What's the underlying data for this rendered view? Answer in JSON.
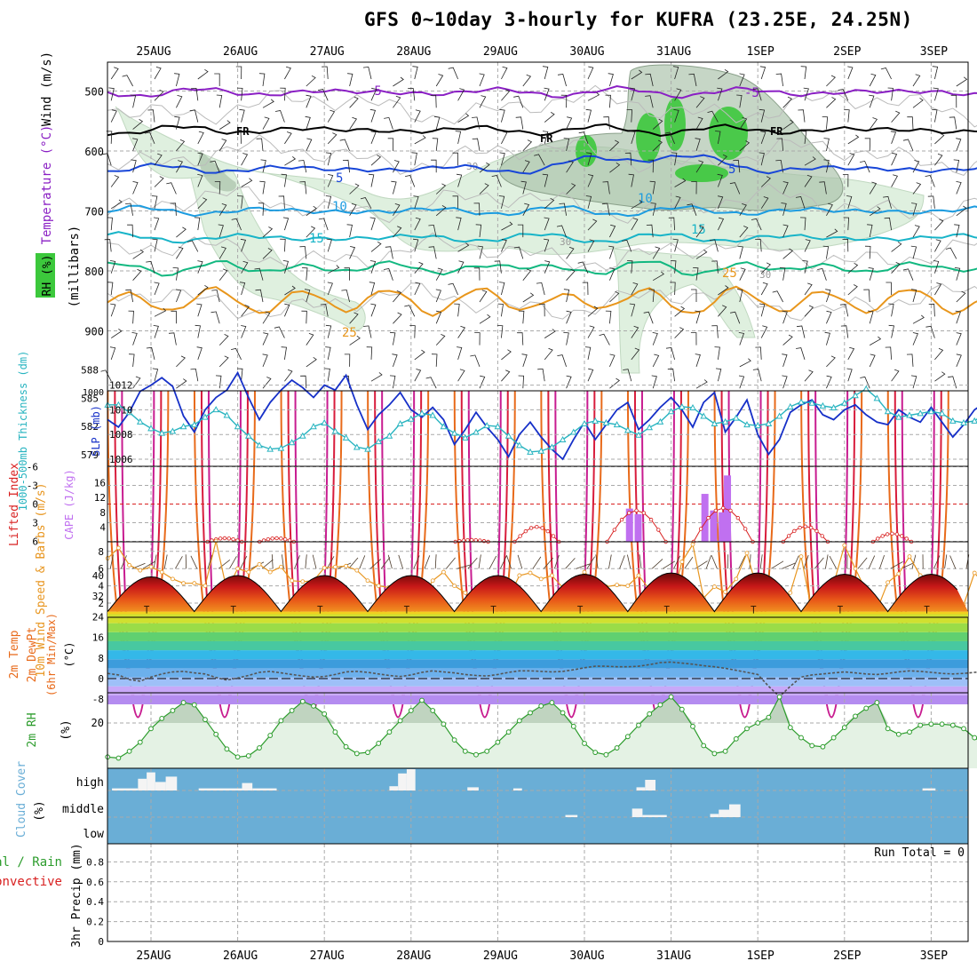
{
  "title": "GFS 0~10day 3-hourly for KUFRA (23.25E, 24.25N)",
  "dates": [
    "25AUG",
    "26AUG",
    "27AUG",
    "28AUG",
    "29AUG",
    "30AUG",
    "31AUG",
    "1SEP",
    "2SEP",
    "3SEP"
  ],
  "colors": {
    "purple": "#8a1fc4",
    "black": "#000000",
    "blue": "#1846d8",
    "sky": "#1c9ce0",
    "teal": "#18b4c8",
    "green": "#12b880",
    "orange": "#e8961c",
    "dorange": "#e86a1a",
    "red": "#d81c3c",
    "magenta": "#c81c90",
    "rhfill": "#dff0df",
    "rhdark": "#a8c0a8",
    "rhgreen": "#3cc83c",
    "cloud": "#6aaed6",
    "slp": "#1630c8",
    "thick": "#28b4c0",
    "cape": "#c070f0",
    "li": "#d82020",
    "wind10": "#e89620",
    "rh2m": "#2c9c2c"
  },
  "chart_data": [
    {
      "panel": "upper-air",
      "type": "line",
      "ylabel": "(millibars)",
      "legend": {
        "wind": "Wind (m/s)",
        "temp": "Temperature (°C)",
        "rh": "RH (%)"
      },
      "yticks": [
        500,
        600,
        700,
        800,
        900
      ],
      "ylim": [
        1000,
        450
      ],
      "contour_labels": {
        "m5": "-5",
        "fr": "FR",
        "p5": "5",
        "p10": "10",
        "p15": "15",
        "p25": "25",
        "rh30": "30"
      },
      "isotherms": [
        {
          "name": "-5",
          "color": "purple",
          "mb": 502
        },
        {
          "name": "FR",
          "color": "black",
          "mb": 565
        },
        {
          "name": "5",
          "color": "blue",
          "mb": 630
        },
        {
          "name": "10",
          "color": "sky",
          "mb": 700
        },
        {
          "name": "15",
          "color": "teal",
          "mb": 745
        },
        {
          "name": "20",
          "color": "green",
          "mb": 795
        },
        {
          "name": "25",
          "color": "orange",
          "mb": 850
        }
      ]
    },
    {
      "panel": "slp-thickness",
      "type": "line",
      "ylabel_left": "1000-500mb Thickness (dm)",
      "ylabel_right": "SLP (mb)",
      "left_ticks": [
        579,
        582,
        585,
        588
      ],
      "right_ticks": [
        1006,
        1008,
        1010,
        1012
      ],
      "slp_mb": [
        1009.2,
        1008.6,
        1009.8,
        1011.5,
        1012.0,
        1012.6,
        1011.9,
        1009.5,
        1008.2,
        1010.0,
        1011.0,
        1011.6,
        1013.0,
        1011.0,
        1009.2,
        1010.6,
        1011.6,
        1012.4,
        1011.8,
        1011.0,
        1012.0,
        1011.6,
        1012.8,
        1010.4,
        1008.4,
        1009.6,
        1010.4,
        1011.4,
        1010.0,
        1009.4,
        1010.2,
        1009.2,
        1007.2,
        1008.4,
        1009.8,
        1008.6,
        1007.6,
        1006.2,
        1008.0,
        1009.0,
        1007.8,
        1006.8,
        1006.0,
        1007.6,
        1009.0,
        1007.6,
        1008.8,
        1010.0,
        1010.6,
        1008.4,
        1009.2,
        1010.2,
        1011.0,
        1010.0,
        1008.6,
        1010.6,
        1011.4,
        1008.2,
        1009.4,
        1010.8,
        1008.0,
        1006.4,
        1007.6,
        1009.8,
        1010.4,
        1010.8,
        1009.6,
        1009.2,
        1010.0,
        1010.4,
        1009.6,
        1009.0,
        1008.8,
        1010.0,
        1009.4,
        1009.0,
        1010.2,
        1009.0,
        1007.8,
        1008.8,
        1010.0,
        1010.6,
        1009.0,
        1008.0,
        1009.4,
        1010.6,
        1011.4
      ],
      "thick_dm": [
        584.3,
        584.3,
        583.5,
        582.5,
        581.8,
        581.3,
        581.5,
        582.0,
        582.2,
        583.0,
        583.8,
        583.2,
        582.0,
        581.0,
        580.0,
        579.6,
        579.7,
        580.3,
        581.0,
        582.0,
        582.4,
        581.5,
        580.8,
        579.8,
        579.6,
        580.4,
        581.0,
        582.3,
        582.8,
        583.4,
        583.2,
        582.0,
        581.3,
        580.8,
        581.4,
        582.1,
        582.0,
        581.0,
        580.0,
        579.3,
        579.4,
        579.8,
        580.6,
        581.4,
        582.3,
        582.6,
        582.4,
        582.2,
        581.6,
        581.1,
        581.9,
        582.5,
        583.6,
        584.1,
        584.0,
        583.1,
        582.3,
        582.5,
        582.9,
        582.2,
        582.1,
        582.3,
        583.1,
        584.1,
        584.6,
        584.5,
        584.2,
        584.0,
        584.5,
        585.3,
        586.0,
        585.0,
        583.6,
        583.0,
        583.2,
        583.4,
        583.6,
        583.4,
        582.6,
        582.4,
        582.6,
        583.4,
        582.8,
        582.0,
        581.6,
        581.0,
        581.8
      ]
    },
    {
      "panel": "cape-li",
      "type": "bar",
      "ylabel_left": "Lifted Index",
      "ylabel_right": "CAPE (J/kg)",
      "li_ticks": [
        "-6",
        "-3",
        "0",
        "3",
        "6"
      ],
      "cape_ticks": [
        4,
        8,
        12,
        16
      ],
      "cape_bars": [
        {
          "day": 5.52,
          "v": 9
        },
        {
          "day": 5.62,
          "v": 7.5
        },
        {
          "day": 6.39,
          "v": 13
        },
        {
          "day": 6.49,
          "v": 8.5
        },
        {
          "day": 6.59,
          "v": 8
        },
        {
          "day": 6.65,
          "v": 18
        }
      ],
      "li_bumps": [
        {
          "day": 0.85,
          "a": 1.0
        },
        {
          "day": 1.45,
          "a": 1.0
        },
        {
          "day": 3.7,
          "a": 0.5
        },
        {
          "day": 4.45,
          "a": 4.2
        },
        {
          "day": 5.6,
          "a": 8.8
        },
        {
          "day": 6.6,
          "a": 9.5
        },
        {
          "day": 7.55,
          "a": 4.3
        },
        {
          "day": 8.55,
          "a": 2.3
        }
      ]
    },
    {
      "panel": "wind10",
      "type": "line",
      "ylabel": "10m Wind Speed & Barbs (m/s)",
      "yticks": [
        2,
        4,
        6,
        8
      ],
      "speed_ms": [
        7.2,
        8.4,
        6.4,
        5.8,
        6.2,
        5.6,
        4.8,
        4.3,
        4.3,
        4.0,
        9.2,
        3.5,
        6.0,
        5.6,
        6.5,
        5.6,
        6.2,
        4.6,
        4.5,
        4.6,
        6.1,
        6.2,
        6.3,
        5.8,
        4.6,
        4.0,
        3.8,
        3.8,
        4.3,
        2.6,
        4.6,
        5.6,
        4.0,
        3.2,
        2.0,
        2.2,
        4.0,
        2.6,
        5.2,
        5.5,
        4.8,
        5.2,
        3.8,
        4.2,
        5.6,
        4.4,
        3.9,
        4.1,
        4.0,
        5.2,
        3.6,
        4.3,
        2.0,
        6.8,
        8.8,
        2.6,
        3.9,
        3.3,
        4.8,
        7.8,
        3.3,
        2.6,
        1.5,
        3.2,
        7.4,
        1.0,
        1.9,
        4.2,
        8.7,
        6.0,
        3.4,
        1.2,
        4.4,
        5.4,
        7.4,
        5.2,
        4.5,
        2.7,
        3.6,
        1.8,
        5.5,
        4.0,
        4.0,
        4.8,
        5.0,
        4.3,
        3.2
      ]
    },
    {
      "panel": "temp2m",
      "type": "area",
      "ylabel": "2m Temp 2m DewPt (6hr Min/Max) (°C)",
      "yticks": [
        "40",
        "32",
        "24",
        "16",
        "8",
        "0",
        "-8"
      ],
      "tmin_c": 26,
      "tmax_c": [
        39.5,
        40,
        40,
        40,
        40,
        40.5,
        41,
        41,
        40.5,
        40.5
      ],
      "dewpt_c": [
        2.0,
        1.4,
        -0.4,
        -1.0,
        0.6,
        1.8,
        2.6,
        2.8,
        2.2,
        1.8,
        0.4,
        -0.6,
        0.2,
        1.2,
        2.4,
        2.8,
        2.2,
        1.6,
        1.0,
        0.6,
        0.8,
        1.6,
        2.6,
        2.8,
        2.4,
        1.8,
        1.2,
        0.8,
        1.4,
        2.4,
        3.0,
        2.6,
        2.2,
        1.6,
        1.2,
        1.0,
        1.6,
        2.4,
        3.0,
        3.0,
        2.8,
        2.6,
        2.8,
        3.4,
        4.2,
        4.8,
        4.8,
        4.6,
        4.6,
        4.8,
        5.4,
        6.2,
        6.4,
        6.0,
        5.6,
        5.0,
        4.6,
        4.0,
        3.2,
        2.4,
        1.6,
        -3.0,
        -7.0,
        -3.0,
        0.6,
        1.4,
        1.8,
        2.2,
        2.6,
        2.2,
        1.8,
        1.6,
        2.0,
        2.6,
        3.0,
        2.8,
        2.4,
        2.0,
        1.8,
        2.0,
        2.4,
        2.8,
        2.6,
        2.2,
        2.0,
        2.2,
        2.6
      ]
    },
    {
      "panel": "rh2m",
      "type": "area",
      "ylabel": "2m RH (%)",
      "yticks": [
        20
      ],
      "rh_pct": [
        5.0,
        4.5,
        7.5,
        11.5,
        17.5,
        22.0,
        25.5,
        29.0,
        28.0,
        21.5,
        15.0,
        8.5,
        5.0,
        5.5,
        9.0,
        14.5,
        21.0,
        25.5,
        29.5,
        27.5,
        24.0,
        16.0,
        9.5,
        6.5,
        7.0,
        11.0,
        16.0,
        21.0,
        25.5,
        30.0,
        25.5,
        19.5,
        12.5,
        7.5,
        6.0,
        7.5,
        11.5,
        16.0,
        21.0,
        24.5,
        27.5,
        29.0,
        24.5,
        18.5,
        11.0,
        7.0,
        6.0,
        9.0,
        14.0,
        19.0,
        24.0,
        28.0,
        31.5,
        26.0,
        18.5,
        10.0,
        6.5,
        7.5,
        13.0,
        17.5,
        20.0,
        22.5,
        31.5,
        18.0,
        13.5,
        10.0,
        9.5,
        13.5,
        18.0,
        23.0,
        26.5,
        29.0,
        17.5,
        15.0,
        16.0,
        19.0,
        19.5,
        19.5,
        19.0,
        17.5,
        13.5,
        10.5,
        7.0,
        4.5,
        11.0,
        15.0,
        18.5,
        14.5,
        8.5
      ]
    },
    {
      "panel": "cloud",
      "type": "bar",
      "ylabel": "Cloud Cover (%)",
      "levels": [
        "high",
        "middle",
        "low"
      ],
      "high": [
        {
          "d0": -0.45,
          "d1": -0.15,
          "v": 0.1
        },
        {
          "d0": -0.15,
          "d1": -0.05,
          "v": 0.55
        },
        {
          "d0": -0.05,
          "d1": 0.05,
          "v": 0.85
        },
        {
          "d0": 0.05,
          "d1": 0.17,
          "v": 0.4
        },
        {
          "d0": 0.17,
          "d1": 0.3,
          "v": 0.65
        },
        {
          "d0": 0.55,
          "d1": 1.05,
          "v": 0.1
        },
        {
          "d0": 1.05,
          "d1": 1.17,
          "v": 0.35
        },
        {
          "d0": 1.17,
          "d1": 1.45,
          "v": 0.1
        },
        {
          "d0": 2.75,
          "d1": 2.85,
          "v": 0.2
        },
        {
          "d0": 2.85,
          "d1": 2.95,
          "v": 0.8
        },
        {
          "d0": 2.95,
          "d1": 3.05,
          "v": 1.0
        },
        {
          "d0": 3.65,
          "d1": 3.78,
          "v": 0.15
        },
        {
          "d0": 4.18,
          "d1": 4.28,
          "v": 0.1
        },
        {
          "d0": 5.6,
          "d1": 5.7,
          "v": 0.15
        },
        {
          "d0": 5.7,
          "d1": 5.82,
          "v": 0.5
        },
        {
          "d0": 8.9,
          "d1": 9.05,
          "v": 0.1
        }
      ],
      "middle": [
        {
          "d0": 4.78,
          "d1": 4.92,
          "v": 0.1
        },
        {
          "d0": 5.55,
          "d1": 5.67,
          "v": 0.4
        },
        {
          "d0": 5.67,
          "d1": 5.95,
          "v": 0.1
        },
        {
          "d0": 6.45,
          "d1": 6.55,
          "v": 0.15
        },
        {
          "d0": 6.55,
          "d1": 6.67,
          "v": 0.35
        },
        {
          "d0": 6.67,
          "d1": 6.8,
          "v": 0.6
        }
      ]
    },
    {
      "panel": "precip",
      "type": "bar",
      "ylabel_1": "3hr Precip (mm)",
      "ylabel_2": "Total / Rain",
      "ylabel_3": "Convective",
      "run_total": "Run Total = 0",
      "yticks": [
        "0",
        "0.2",
        "0.4",
        "0.6",
        "0.8"
      ],
      "values": []
    }
  ]
}
